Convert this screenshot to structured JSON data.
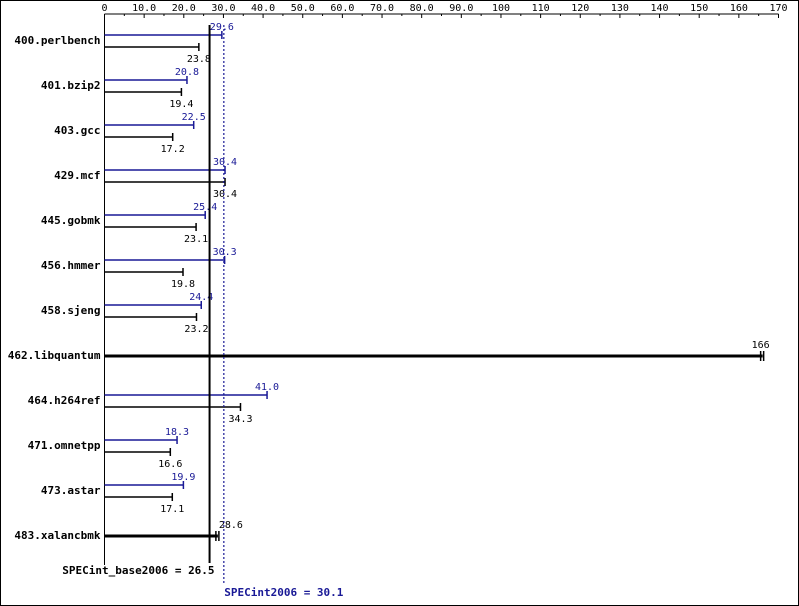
{
  "chart_data": {
    "type": "bar",
    "orientation": "horizontal",
    "x_ticks": [
      0,
      10,
      20,
      30,
      40,
      50,
      60,
      70,
      80,
      90,
      100,
      110,
      120,
      130,
      140,
      150,
      160,
      170
    ],
    "x_tick_labels": [
      "0",
      "10.0",
      "20.0",
      "30.0",
      "40.0",
      "50.0",
      "60.0",
      "70.0",
      "80.0",
      "90.0",
      "100",
      "110",
      "120",
      "130",
      "140",
      "150",
      "160",
      "170"
    ],
    "xlim": [
      0,
      170
    ],
    "categories": [
      "400.perlbench",
      "401.bzip2",
      "403.gcc",
      "429.mcf",
      "445.gobmk",
      "456.hmmer",
      "458.sjeng",
      "462.libquantum",
      "464.h264ref",
      "471.omnetpp",
      "473.astar",
      "483.xalancbmk"
    ],
    "series": [
      {
        "key": "peak",
        "color": "#191996",
        "values": [
          29.6,
          20.8,
          22.5,
          30.4,
          25.4,
          30.3,
          24.4,
          null,
          41.0,
          18.3,
          19.9,
          null
        ],
        "labels": [
          "29.6",
          "20.8",
          "22.5",
          "30.4",
          "25.4",
          "30.3",
          "24.4",
          "",
          "41.0",
          "18.3",
          "19.9",
          ""
        ]
      },
      {
        "key": "base",
        "color": "#000000",
        "values": [
          23.8,
          19.4,
          17.2,
          30.4,
          23.1,
          19.8,
          23.2,
          166,
          34.3,
          16.6,
          17.1,
          28.6
        ],
        "labels": [
          "23.8",
          "19.4",
          "17.2",
          "30.4",
          "23.1",
          "19.8",
          "23.2",
          "166",
          "34.3",
          "16.6",
          "17.1",
          "28.6"
        ]
      }
    ],
    "reference_lines": [
      {
        "key": "base",
        "value": 26.5,
        "style": "solid",
        "color": "#000000",
        "label": "SPECint_base2006 = 26.5"
      },
      {
        "key": "peak",
        "value": 30.1,
        "style": "dotted",
        "color": "#191996",
        "label": "SPECint2006 = 30.1"
      }
    ],
    "grid": false,
    "legend": "none"
  }
}
